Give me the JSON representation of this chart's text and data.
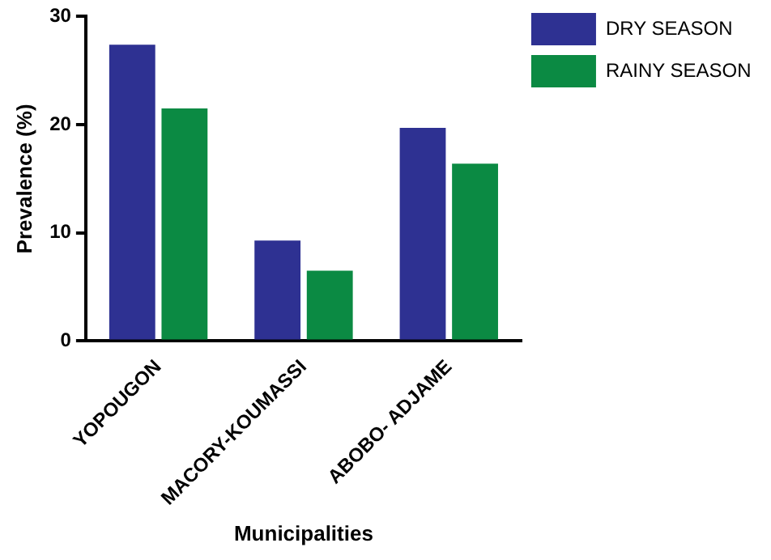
{
  "chart_data": {
    "type": "bar",
    "xlabel": "Municipalities",
    "ylabel": "Prevalence (%)",
    "categories": [
      "YOPOUGON",
      "MACORY-KOUMASSI",
      "ABOBO- ADJAME"
    ],
    "series": [
      {
        "name": "DRY SEASON",
        "color": "#2e3192",
        "values": [
          27.4,
          9.3,
          19.7
        ]
      },
      {
        "name": "RAINY SEASON",
        "color": "#0b8a43",
        "values": [
          21.5,
          6.5,
          16.4
        ]
      }
    ],
    "ylim": [
      0,
      30
    ],
    "yticks": [
      0,
      10,
      20,
      30
    ],
    "grid": false,
    "legend": "top right"
  }
}
